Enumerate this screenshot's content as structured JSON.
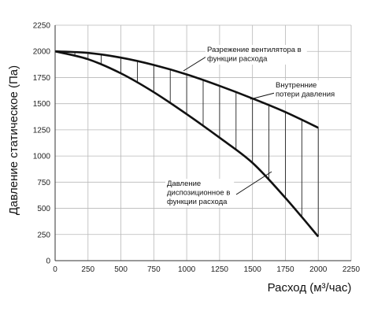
{
  "chart_data": {
    "type": "line",
    "xlabel": "Расход (м³/час)",
    "ylabel": "Давление статическое (Па)",
    "xlim": [
      0,
      2250
    ],
    "ylim": [
      0,
      2250
    ],
    "x_ticks": [
      0,
      250,
      500,
      750,
      1000,
      1250,
      1500,
      1750,
      2000,
      2250
    ],
    "y_ticks": [
      0,
      250,
      500,
      750,
      1000,
      1250,
      1500,
      1750,
      2000,
      2250
    ],
    "x_tick_labels": [
      "0",
      "250",
      "500",
      "750",
      "1000",
      "1250",
      "1500",
      "1750",
      "2000",
      "2250"
    ],
    "y_tick_labels": [
      "0",
      "250",
      "500",
      "750",
      "1000",
      "1250",
      "1500",
      "1750",
      "2000",
      "2250"
    ],
    "grid": true,
    "series": [
      {
        "name": "Разрежение вентилятора в функции расхода",
        "x": [
          0,
          250,
          500,
          750,
          1000,
          1250,
          1500,
          1750,
          2000
        ],
        "y": [
          2000,
          1985,
          1940,
          1870,
          1780,
          1670,
          1550,
          1420,
          1270
        ]
      },
      {
        "name": "Давление диспозиционное в функции расхода",
        "x": [
          0,
          250,
          500,
          750,
          1000,
          1250,
          1500,
          1750,
          2000
        ],
        "y": [
          2000,
          1925,
          1790,
          1610,
          1400,
          1175,
          935,
          600,
          230
        ]
      }
    ],
    "hatch_x": [
      150,
      250,
      350,
      500,
      625,
      750,
      875,
      1000,
      1125,
      1250,
      1375,
      1500,
      1625,
      1750,
      1875,
      2000
    ],
    "annotations": [
      {
        "lines": [
          "Разрежение вентилятора в",
          "функции расхода"
        ]
      },
      {
        "lines": [
          "Внутренние",
          "потери давления"
        ]
      },
      {
        "lines": [
          "Давление",
          "диспозиционное в",
          "функции расхода"
        ]
      }
    ]
  }
}
